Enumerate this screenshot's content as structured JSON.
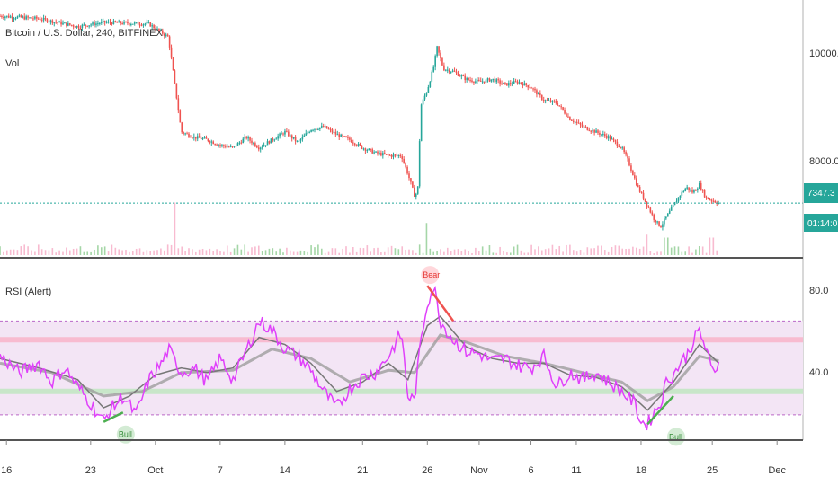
{
  "chart_data": [
    {
      "type": "candlestick",
      "title": "Bitcoin / U.S. Dollar, 240, BITFINEX",
      "subtitle": "Vol",
      "y_ticks": [
        10000.0,
        8000.0
      ],
      "y_tick_labels": [
        "10000.0",
        "8000.0"
      ],
      "ylim": [
        6600,
        11000
      ],
      "last_price_label": "7347.3",
      "countdown_label": "01:14:03",
      "last_price": 7347.3,
      "colors": {
        "up": "#26a69a",
        "down": "#ef5350",
        "price_line": "#26a69a"
      },
      "close_path": [
        [
          0,
          10900
        ],
        [
          6,
          10850
        ],
        [
          12,
          10700
        ],
        [
          16,
          10780
        ],
        [
          23,
          10750
        ],
        [
          26,
          10500
        ],
        [
          28,
          8700
        ],
        [
          30,
          8600
        ],
        [
          32,
          8550
        ],
        [
          34,
          8450
        ],
        [
          36,
          8400
        ],
        [
          38,
          8600
        ],
        [
          40,
          8400
        ],
        [
          42,
          8550
        ],
        [
          44,
          8700
        ],
        [
          46,
          8500
        ],
        [
          48,
          8750
        ],
        [
          50,
          8800
        ],
        [
          52,
          8650
        ],
        [
          54,
          8550
        ],
        [
          56,
          8400
        ],
        [
          58,
          8300
        ],
        [
          60,
          8250
        ],
        [
          62,
          8250
        ],
        [
          63,
          7900
        ],
        [
          64,
          7500
        ],
        [
          64.5,
          7550
        ],
        [
          65,
          9200
        ],
        [
          66,
          9500
        ],
        [
          67,
          9950
        ],
        [
          67.5,
          10300
        ],
        [
          68.5,
          9900
        ],
        [
          70,
          9850
        ],
        [
          72,
          9700
        ],
        [
          74,
          9650
        ],
        [
          76,
          9700
        ],
        [
          78,
          9600
        ],
        [
          80,
          9650
        ],
        [
          82,
          9550
        ],
        [
          84,
          9300
        ],
        [
          86,
          9250
        ],
        [
          88,
          8950
        ],
        [
          90,
          8800
        ],
        [
          92,
          8700
        ],
        [
          94,
          8600
        ],
        [
          96,
          8400
        ],
        [
          97,
          8150
        ],
        [
          98.5,
          7650
        ],
        [
          100,
          7300
        ],
        [
          101,
          7050
        ],
        [
          102,
          6900
        ],
        [
          103,
          7100
        ],
        [
          104,
          7300
        ],
        [
          105,
          7500
        ],
        [
          106,
          7650
        ],
        [
          107,
          7550
        ],
        [
          108,
          7700
        ],
        [
          109,
          7450
        ],
        [
          110,
          7400
        ],
        [
          111,
          7350
        ]
      ],
      "volume_spikes": [
        [
          27,
          0.9
        ],
        [
          66,
          0.55
        ],
        [
          100,
          0.35
        ],
        [
          103,
          0.3
        ],
        [
          110,
          0.3
        ]
      ]
    },
    {
      "type": "line",
      "title": "RSI (Alert)",
      "y_ticks": [
        80.0,
        40.0
      ],
      "y_tick_labels": [
        "80.0",
        "40.0"
      ],
      "ylim": [
        20,
        95
      ],
      "bands": {
        "upper": 70,
        "lower": 30,
        "overbought": 62,
        "oversold": 40
      },
      "rsi_path": [
        [
          0,
          55
        ],
        [
          3,
          48
        ],
        [
          6,
          52
        ],
        [
          8,
          44
        ],
        [
          10,
          50
        ],
        [
          12,
          42
        ],
        [
          14,
          35
        ],
        [
          16,
          27
        ],
        [
          17,
          32
        ],
        [
          19,
          38
        ],
        [
          21,
          30
        ],
        [
          23,
          45
        ],
        [
          25,
          52
        ],
        [
          26,
          58
        ],
        [
          28,
          48
        ],
        [
          30,
          50
        ],
        [
          32,
          44
        ],
        [
          34,
          54
        ],
        [
          36,
          45
        ],
        [
          38,
          57
        ],
        [
          40,
          70
        ],
        [
          42,
          66
        ],
        [
          44,
          58
        ],
        [
          46,
          55
        ],
        [
          48,
          49
        ],
        [
          50,
          40
        ],
        [
          52,
          33
        ],
        [
          54,
          41
        ],
        [
          56,
          46
        ],
        [
          58,
          48
        ],
        [
          60,
          55
        ],
        [
          62,
          65
        ],
        [
          63,
          38
        ],
        [
          64,
          36
        ],
        [
          65,
          62
        ],
        [
          66,
          78
        ],
        [
          67,
          85
        ],
        [
          68,
          70
        ],
        [
          70,
          62
        ],
        [
          72,
          57
        ],
        [
          74,
          56
        ],
        [
          76,
          53
        ],
        [
          78,
          54
        ],
        [
          80,
          51
        ],
        [
          82,
          50
        ],
        [
          84,
          55
        ],
        [
          86,
          42
        ],
        [
          88,
          48
        ],
        [
          90,
          45
        ],
        [
          92,
          48
        ],
        [
          94,
          44
        ],
        [
          96,
          40
        ],
        [
          98,
          35
        ],
        [
          99,
          27
        ],
        [
          100,
          26
        ],
        [
          101,
          31
        ],
        [
          102,
          35
        ],
        [
          103,
          45
        ],
        [
          104,
          47
        ],
        [
          105,
          52
        ],
        [
          106,
          55
        ],
        [
          107,
          61
        ],
        [
          108,
          66
        ],
        [
          109,
          58
        ],
        [
          110,
          48
        ],
        [
          111,
          52
        ]
      ],
      "ma_fast_path": [
        [
          0,
          54
        ],
        [
          6,
          50
        ],
        [
          12,
          45
        ],
        [
          16,
          33
        ],
        [
          20,
          38
        ],
        [
          24,
          47
        ],
        [
          28,
          50
        ],
        [
          32,
          48
        ],
        [
          36,
          50
        ],
        [
          40,
          63
        ],
        [
          44,
          60
        ],
        [
          48,
          52
        ],
        [
          52,
          40
        ],
        [
          56,
          44
        ],
        [
          60,
          52
        ],
        [
          63,
          45
        ],
        [
          66,
          68
        ],
        [
          68,
          72
        ],
        [
          72,
          59
        ],
        [
          76,
          54
        ],
        [
          80,
          52
        ],
        [
          84,
          52
        ],
        [
          88,
          47
        ],
        [
          92,
          46
        ],
        [
          96,
          42
        ],
        [
          100,
          32
        ],
        [
          104,
          44
        ],
        [
          108,
          60
        ],
        [
          111,
          52
        ]
      ],
      "ma_slow_path": [
        [
          0,
          52
        ],
        [
          8,
          48
        ],
        [
          16,
          38
        ],
        [
          22,
          40
        ],
        [
          28,
          48
        ],
        [
          36,
          49
        ],
        [
          42,
          58
        ],
        [
          48,
          54
        ],
        [
          54,
          44
        ],
        [
          60,
          49
        ],
        [
          64,
          48
        ],
        [
          68,
          64
        ],
        [
          72,
          61
        ],
        [
          78,
          55
        ],
        [
          84,
          52
        ],
        [
          90,
          48
        ],
        [
          96,
          44
        ],
        [
          100,
          36
        ],
        [
          104,
          42
        ],
        [
          108,
          55
        ],
        [
          111,
          53
        ]
      ],
      "divergences": [
        {
          "label": "Bear",
          "x1": 66,
          "y1": 85,
          "x2": 70,
          "y2": 70,
          "color": "#ef5350"
        },
        {
          "label": "Bull",
          "x1": 16,
          "y1": 27,
          "x2": 19,
          "y2": 31,
          "color": "#4caf50"
        },
        {
          "label": "Bull",
          "x1": 100,
          "y1": 26,
          "x2": 104,
          "y2": 38,
          "color": "#4caf50"
        }
      ],
      "colors": {
        "rsi": "#e040fb",
        "ma": "#777777",
        "band_fill": "#f3e5f5",
        "ob_line": "#f8bbd0",
        "os_line": "#c8e6c9",
        "dashed": "#ba68c8"
      }
    }
  ],
  "x_axis": {
    "labels": [
      "16",
      "23",
      "Oct",
      "7",
      "14",
      "21",
      "26",
      "Nov",
      "6",
      "11",
      "18",
      "25",
      "Dec"
    ],
    "positions": [
      1,
      14,
      24,
      34,
      44,
      56,
      66,
      74,
      82,
      89,
      99,
      110,
      120
    ]
  }
}
